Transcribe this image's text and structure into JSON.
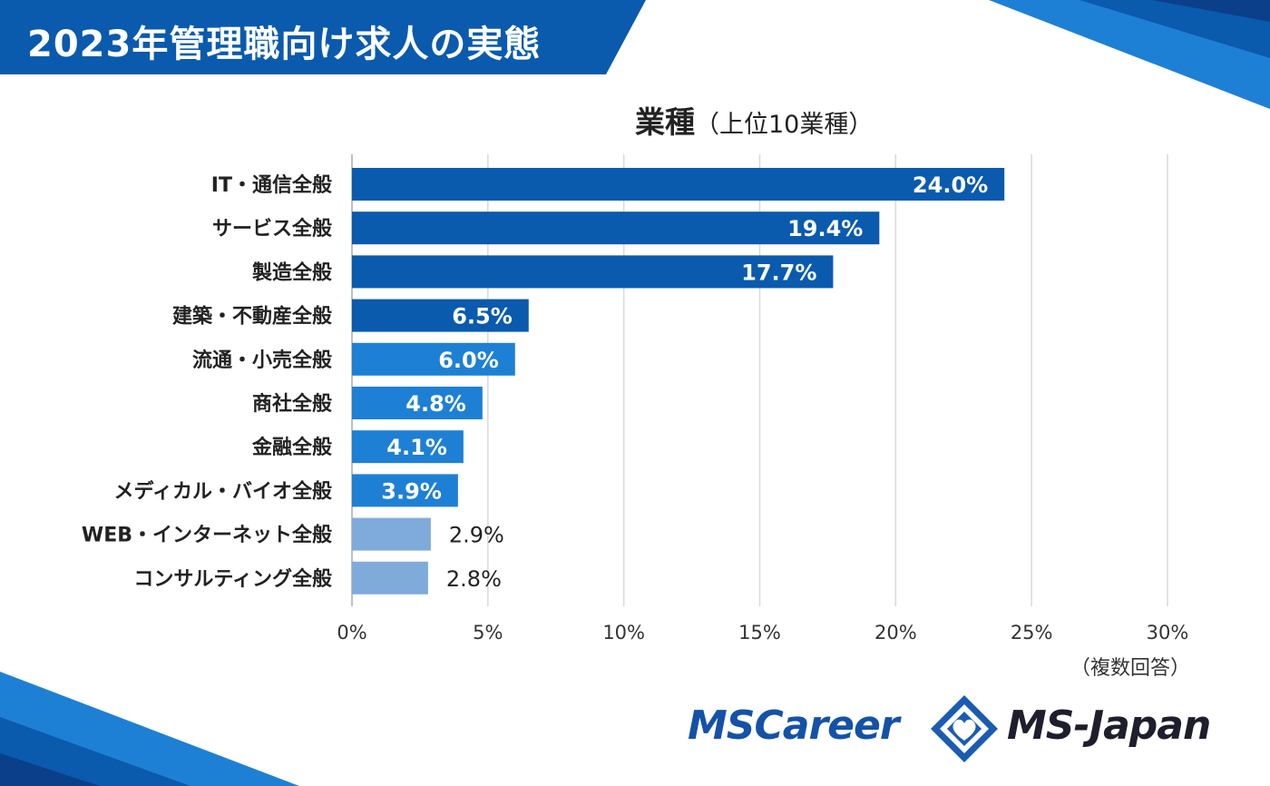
{
  "banner": {
    "title": "2023年管理職向け求人の実態"
  },
  "chart_title": {
    "main": "業種",
    "sub": "（上位10業種）"
  },
  "note": "（複数回答）",
  "logos": {
    "mscareer": "MSCareer",
    "msjapan": "MS-Japan"
  },
  "colors": {
    "dark_blue": "#0a5aae",
    "mid_blue": "#1e80d4",
    "light_blue": "#7fabda",
    "banner": "#0a5aae"
  },
  "chart_data": {
    "type": "bar",
    "orientation": "horizontal",
    "title": "業種（上位10業種）",
    "categories": [
      "IT・通信全般",
      "サービス全般",
      "製造全般",
      "建築・不動産全般",
      "流通・小売全般",
      "商社全般",
      "金融全般",
      "メディカル・バイオ全般",
      "WEB・インターネット全般",
      "コンサルティング全般"
    ],
    "values": [
      24.0,
      19.4,
      17.7,
      6.5,
      6.0,
      4.8,
      4.1,
      3.9,
      2.9,
      2.8
    ],
    "labels": [
      "24.0%",
      "19.4%",
      "17.7%",
      "6.5%",
      "6.0%",
      "4.8%",
      "4.1%",
      "3.9%",
      "2.9%",
      "2.8%"
    ],
    "bar_colors": [
      "#0a5aae",
      "#0a5aae",
      "#0a5aae",
      "#0a5aae",
      "#1e80d4",
      "#1e80d4",
      "#1e80d4",
      "#1e80d4",
      "#7fabda",
      "#7fabda"
    ],
    "xlim": [
      0,
      30
    ],
    "xticks": [
      0,
      5,
      10,
      15,
      20,
      25,
      30
    ],
    "xtick_labels": [
      "0%",
      "5%",
      "10%",
      "15%",
      "20%",
      "25%",
      "30%"
    ],
    "grid": true
  }
}
